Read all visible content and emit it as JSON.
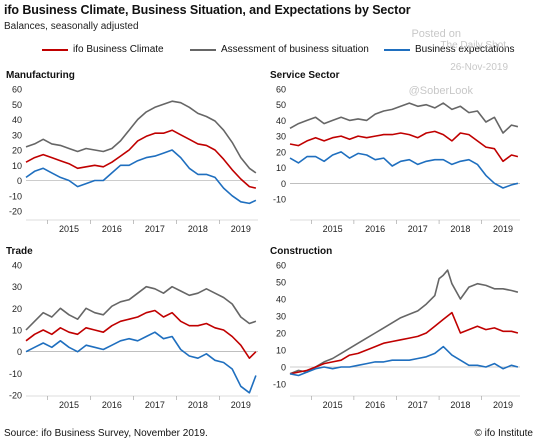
{
  "header": {
    "title": "ifo Business Climate, Business Situation, and Expectations by Sector",
    "subtitle": "Balances, seasonally adjusted"
  },
  "legend": [
    {
      "label": "ifo Business Climate",
      "color": "#c00000"
    },
    {
      "label": "Assessment of business situation",
      "color": "#666666"
    },
    {
      "label": "Business expectations",
      "color": "#1f6fbf"
    }
  ],
  "watermark": {
    "posted": "Posted on",
    "site": "The Daily Shot",
    "date": "26-Nov-2019",
    "handle": "@SoberLook"
  },
  "footer": {
    "source": "Source: ifo Business Survey, November 2019.",
    "copyright": "© ifo Institute"
  },
  "chart_data": [
    {
      "type": "line",
      "title": "Manufacturing",
      "xticks": [
        "2015",
        "2016",
        "2017",
        "2018",
        "2019"
      ],
      "ylim": [
        -20,
        60
      ],
      "yticks": [
        -20,
        -10,
        0,
        10,
        20,
        30,
        40,
        50,
        60
      ],
      "x_range": [
        2014.5,
        2019.9
      ],
      "series": [
        {
          "name": "Assessment of business situation",
          "color": "#666666",
          "x": [
            2014.5,
            2014.7,
            2014.9,
            2015.1,
            2015.3,
            2015.5,
            2015.7,
            2015.9,
            2016.1,
            2016.3,
            2016.5,
            2016.7,
            2016.9,
            2017.1,
            2017.3,
            2017.5,
            2017.7,
            2017.9,
            2018.1,
            2018.3,
            2018.5,
            2018.7,
            2018.9,
            2019.1,
            2019.3,
            2019.5,
            2019.7,
            2019.85
          ],
          "y": [
            22,
            24,
            27,
            24,
            23,
            21,
            19,
            21,
            20,
            19,
            21,
            26,
            33,
            40,
            45,
            48,
            50,
            52,
            51,
            48,
            44,
            42,
            39,
            33,
            25,
            15,
            8,
            5
          ]
        },
        {
          "name": "ifo Business Climate",
          "color": "#c00000",
          "x": [
            2014.5,
            2014.7,
            2014.9,
            2015.1,
            2015.3,
            2015.5,
            2015.7,
            2015.9,
            2016.1,
            2016.3,
            2016.5,
            2016.7,
            2016.9,
            2017.1,
            2017.3,
            2017.5,
            2017.7,
            2017.9,
            2018.1,
            2018.3,
            2018.5,
            2018.7,
            2018.9,
            2019.1,
            2019.3,
            2019.5,
            2019.7,
            2019.85
          ],
          "y": [
            12,
            15,
            17,
            15,
            13,
            11,
            8,
            9,
            10,
            9,
            12,
            16,
            20,
            26,
            29,
            31,
            31,
            33,
            30,
            27,
            24,
            23,
            20,
            14,
            7,
            1,
            -4,
            -5
          ]
        },
        {
          "name": "Business expectations",
          "color": "#1f6fbf",
          "x": [
            2014.5,
            2014.7,
            2014.9,
            2015.1,
            2015.3,
            2015.5,
            2015.7,
            2015.9,
            2016.1,
            2016.3,
            2016.5,
            2016.7,
            2016.9,
            2017.1,
            2017.3,
            2017.5,
            2017.7,
            2017.9,
            2018.1,
            2018.3,
            2018.5,
            2018.7,
            2018.9,
            2019.1,
            2019.3,
            2019.5,
            2019.7,
            2019.85
          ],
          "y": [
            2,
            6,
            8,
            5,
            2,
            0,
            -4,
            -2,
            0,
            0,
            5,
            10,
            10,
            13,
            15,
            16,
            18,
            20,
            15,
            8,
            4,
            4,
            2,
            -5,
            -10,
            -14,
            -15,
            -13
          ]
        }
      ]
    },
    {
      "type": "line",
      "title": "Service Sector",
      "xticks": [
        "2015",
        "2016",
        "2017",
        "2018",
        "2019"
      ],
      "ylim": [
        -10,
        60
      ],
      "yticks": [
        -10,
        0,
        10,
        20,
        30,
        40,
        50,
        60
      ],
      "x_range": [
        2014.5,
        2019.9
      ],
      "series": [
        {
          "name": "Assessment of business situation",
          "color": "#666666",
          "x": [
            2014.5,
            2014.7,
            2014.9,
            2015.1,
            2015.3,
            2015.5,
            2015.7,
            2015.9,
            2016.1,
            2016.3,
            2016.5,
            2016.7,
            2016.9,
            2017.1,
            2017.3,
            2017.5,
            2017.7,
            2017.9,
            2018.1,
            2018.3,
            2018.5,
            2018.7,
            2018.9,
            2019.1,
            2019.3,
            2019.5,
            2019.7,
            2019.85
          ],
          "y": [
            35,
            38,
            40,
            42,
            38,
            40,
            42,
            40,
            41,
            40,
            44,
            46,
            47,
            49,
            51,
            49,
            50,
            48,
            51,
            47,
            49,
            45,
            46,
            39,
            42,
            32,
            37,
            36
          ]
        },
        {
          "name": "ifo Business Climate",
          "color": "#c00000",
          "x": [
            2014.5,
            2014.7,
            2014.9,
            2015.1,
            2015.3,
            2015.5,
            2015.7,
            2015.9,
            2016.1,
            2016.3,
            2016.5,
            2016.7,
            2016.9,
            2017.1,
            2017.3,
            2017.5,
            2017.7,
            2017.9,
            2018.1,
            2018.3,
            2018.5,
            2018.7,
            2018.9,
            2019.1,
            2019.3,
            2019.5,
            2019.7,
            2019.85
          ],
          "y": [
            25,
            24,
            27,
            29,
            27,
            29,
            30,
            28,
            30,
            29,
            30,
            31,
            31,
            32,
            31,
            29,
            32,
            33,
            31,
            27,
            32,
            31,
            27,
            23,
            22,
            14,
            18,
            17
          ]
        },
        {
          "name": "Business expectations",
          "color": "#1f6fbf",
          "x": [
            2014.5,
            2014.7,
            2014.9,
            2015.1,
            2015.3,
            2015.5,
            2015.7,
            2015.9,
            2016.1,
            2016.3,
            2016.5,
            2016.7,
            2016.9,
            2017.1,
            2017.3,
            2017.5,
            2017.7,
            2017.9,
            2018.1,
            2018.3,
            2018.5,
            2018.7,
            2018.9,
            2019.1,
            2019.3,
            2019.5,
            2019.7,
            2019.85
          ],
          "y": [
            16,
            13,
            17,
            17,
            14,
            18,
            20,
            16,
            19,
            18,
            15,
            16,
            11,
            14,
            15,
            12,
            14,
            15,
            15,
            12,
            14,
            15,
            12,
            5,
            0,
            -3,
            -1,
            0
          ]
        }
      ]
    },
    {
      "type": "line",
      "title": "Trade",
      "xticks": [
        "2015",
        "2016",
        "2017",
        "2018",
        "2019"
      ],
      "ylim": [
        -20,
        40
      ],
      "yticks": [
        -20,
        -10,
        0,
        10,
        20,
        30,
        40
      ],
      "x_range": [
        2014.5,
        2019.9
      ],
      "series": [
        {
          "name": "Assessment of business situation",
          "color": "#666666",
          "x": [
            2014.5,
            2014.7,
            2014.9,
            2015.1,
            2015.3,
            2015.5,
            2015.7,
            2015.9,
            2016.1,
            2016.3,
            2016.5,
            2016.7,
            2016.9,
            2017.1,
            2017.3,
            2017.5,
            2017.7,
            2017.9,
            2018.1,
            2018.3,
            2018.5,
            2018.7,
            2018.9,
            2019.1,
            2019.3,
            2019.5,
            2019.7,
            2019.85
          ],
          "y": [
            10,
            14,
            18,
            16,
            20,
            17,
            15,
            20,
            18,
            17,
            21,
            23,
            24,
            27,
            30,
            29,
            27,
            30,
            28,
            26,
            27,
            29,
            27,
            25,
            22,
            16,
            13,
            14
          ]
        },
        {
          "name": "ifo Business Climate",
          "color": "#c00000",
          "x": [
            2014.5,
            2014.7,
            2014.9,
            2015.1,
            2015.3,
            2015.5,
            2015.7,
            2015.9,
            2016.1,
            2016.3,
            2016.5,
            2016.7,
            2016.9,
            2017.1,
            2017.3,
            2017.5,
            2017.7,
            2017.9,
            2018.1,
            2018.3,
            2018.5,
            2018.7,
            2018.9,
            2019.1,
            2019.3,
            2019.5,
            2019.7,
            2019.85
          ],
          "y": [
            5,
            8,
            10,
            8,
            11,
            9,
            8,
            11,
            10,
            9,
            12,
            14,
            15,
            16,
            18,
            19,
            16,
            18,
            14,
            12,
            12,
            13,
            11,
            10,
            7,
            3,
            -3,
            0
          ]
        },
        {
          "name": "Business expectations",
          "color": "#1f6fbf",
          "x": [
            2014.5,
            2014.7,
            2014.9,
            2015.1,
            2015.3,
            2015.5,
            2015.7,
            2015.9,
            2016.1,
            2016.3,
            2016.5,
            2016.7,
            2016.9,
            2017.1,
            2017.3,
            2017.5,
            2017.7,
            2017.9,
            2018.1,
            2018.3,
            2018.5,
            2018.7,
            2018.9,
            2019.1,
            2019.3,
            2019.5,
            2019.7,
            2019.85
          ],
          "y": [
            0,
            2,
            4,
            2,
            5,
            2,
            0,
            3,
            2,
            1,
            3,
            5,
            6,
            5,
            7,
            9,
            6,
            7,
            1,
            -2,
            -3,
            -1,
            -4,
            -5,
            -8,
            -16,
            -19,
            -11
          ]
        }
      ]
    },
    {
      "type": "line",
      "title": "Construction",
      "xticks": [
        "2015",
        "2016",
        "2017",
        "2018",
        "2019"
      ],
      "ylim": [
        -10,
        60
      ],
      "yticks": [
        -10,
        0,
        10,
        20,
        30,
        40,
        50,
        60
      ],
      "x_range": [
        2014.5,
        2019.9
      ],
      "series": [
        {
          "name": "Assessment of business situation",
          "color": "#666666",
          "x": [
            2014.5,
            2014.7,
            2014.9,
            2015.1,
            2015.3,
            2015.5,
            2015.7,
            2015.9,
            2016.1,
            2016.3,
            2016.5,
            2016.7,
            2016.9,
            2017.1,
            2017.3,
            2017.5,
            2017.7,
            2017.9,
            2018.0,
            2018.1,
            2018.2,
            2018.3,
            2018.5,
            2018.7,
            2018.9,
            2019.1,
            2019.3,
            2019.5,
            2019.7,
            2019.85
          ],
          "y": [
            -4,
            -2,
            -3,
            0,
            3,
            5,
            8,
            11,
            14,
            17,
            20,
            23,
            26,
            29,
            31,
            33,
            37,
            42,
            52,
            54,
            57,
            49,
            40,
            47,
            49,
            48,
            46,
            46,
            45,
            44
          ]
        },
        {
          "name": "ifo Business Climate",
          "color": "#c00000",
          "x": [
            2014.5,
            2014.7,
            2014.9,
            2015.1,
            2015.3,
            2015.5,
            2015.7,
            2015.9,
            2016.1,
            2016.3,
            2016.5,
            2016.7,
            2016.9,
            2017.1,
            2017.3,
            2017.5,
            2017.7,
            2017.9,
            2018.1,
            2018.3,
            2018.5,
            2018.7,
            2018.9,
            2019.1,
            2019.3,
            2019.5,
            2019.7,
            2019.85
          ],
          "y": [
            -4,
            -3,
            -2,
            0,
            2,
            3,
            4,
            7,
            8,
            10,
            12,
            14,
            15,
            16,
            17,
            18,
            20,
            24,
            28,
            32,
            20,
            22,
            24,
            22,
            23,
            21,
            21,
            20
          ]
        },
        {
          "name": "Business expectations",
          "color": "#1f6fbf",
          "x": [
            2014.5,
            2014.7,
            2014.9,
            2015.1,
            2015.3,
            2015.5,
            2015.7,
            2015.9,
            2016.1,
            2016.3,
            2016.5,
            2016.7,
            2016.9,
            2017.1,
            2017.3,
            2017.5,
            2017.7,
            2017.9,
            2018.1,
            2018.3,
            2018.5,
            2018.7,
            2018.9,
            2019.1,
            2019.3,
            2019.5,
            2019.7,
            2019.85
          ],
          "y": [
            -4,
            -5,
            -3,
            -1,
            0,
            -1,
            0,
            0,
            1,
            2,
            3,
            3,
            4,
            4,
            4,
            5,
            6,
            8,
            12,
            7,
            4,
            1,
            1,
            0,
            2,
            -1,
            1,
            0
          ]
        }
      ]
    }
  ]
}
